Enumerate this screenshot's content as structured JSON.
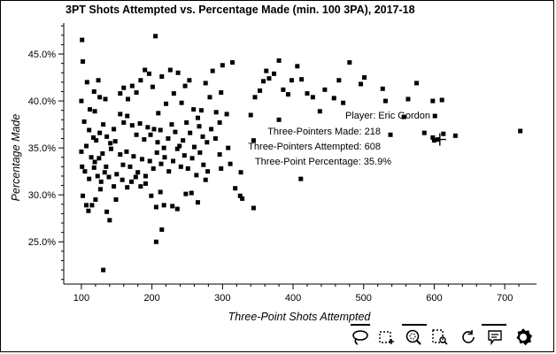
{
  "chart_data": {
    "type": "scatter",
    "title": "3PT Shots Attempted vs. Percentage Made (min. 100 3PA), 2017-18",
    "xlabel": "Three-Point Shots Attempted",
    "ylabel": "Percentage Made",
    "xlim": [
      75,
      745
    ],
    "ylim": [
      20.5,
      48.3
    ],
    "xticks": [
      100,
      200,
      300,
      400,
      500,
      600,
      700
    ],
    "yticks": [
      25,
      30,
      35,
      40,
      45
    ],
    "ytick_suffix": ".0%",
    "grid": false,
    "points": [
      [
        101,
        46.5
      ],
      [
        102,
        44.2
      ],
      [
        108,
        42.0
      ],
      [
        118,
        41.0
      ],
      [
        124,
        42.2
      ],
      [
        126,
        40.4
      ],
      [
        100,
        40.0
      ],
      [
        134,
        40.2
      ],
      [
        112,
        39.1
      ],
      [
        119,
        38.9
      ],
      [
        104,
        37.8
      ],
      [
        111,
        36.9
      ],
      [
        117,
        36.1
      ],
      [
        121,
        35.8
      ],
      [
        126,
        36.6
      ],
      [
        131,
        37.5
      ],
      [
        136,
        36.2
      ],
      [
        141,
        35.5
      ],
      [
        146,
        37.0
      ],
      [
        100,
        34.6
      ],
      [
        107,
        35.2
      ],
      [
        114,
        34.0
      ],
      [
        119,
        33.5
      ],
      [
        125,
        33.9
      ],
      [
        130,
        34.4
      ],
      [
        135,
        33.0
      ],
      [
        142,
        34.9
      ],
      [
        148,
        35.7
      ],
      [
        101,
        33.0
      ],
      [
        105,
        32.5
      ],
      [
        111,
        31.7
      ],
      [
        118,
        32.9
      ],
      [
        123,
        32.0
      ],
      [
        128,
        31.4
      ],
      [
        133,
        32.4
      ],
      [
        139,
        31.9
      ],
      [
        146,
        30.9
      ],
      [
        150,
        32.2
      ],
      [
        102,
        29.9
      ],
      [
        107,
        28.9
      ],
      [
        110,
        28.3
      ],
      [
        115,
        28.9
      ],
      [
        120,
        29.5
      ],
      [
        127,
        30.6
      ],
      [
        136,
        28.2
      ],
      [
        140,
        27.3
      ],
      [
        149,
        29.5
      ],
      [
        131,
        22.0
      ],
      [
        155,
        40.8
      ],
      [
        160,
        41.4
      ],
      [
        166,
        40.2
      ],
      [
        172,
        41.6
      ],
      [
        178,
        40.9
      ],
      [
        184,
        42.2
      ],
      [
        190,
        43.3
      ],
      [
        196,
        42.9
      ],
      [
        201,
        41.5
      ],
      [
        205,
        46.9
      ],
      [
        209,
        38.7
      ],
      [
        214,
        42.6
      ],
      [
        220,
        39.7
      ],
      [
        226,
        43.3
      ],
      [
        231,
        40.8
      ],
      [
        237,
        43.0
      ],
      [
        242,
        39.8
      ],
      [
        247,
        41.6
      ],
      [
        253,
        42.2
      ],
      [
        259,
        39.1
      ],
      [
        265,
        38.2
      ],
      [
        270,
        39.0
      ],
      [
        276,
        41.9
      ],
      [
        282,
        40.4
      ],
      [
        286,
        43.2
      ],
      [
        291,
        38.8
      ],
      [
        155,
        38.6
      ],
      [
        160,
        37.7
      ],
      [
        165,
        38.4
      ],
      [
        172,
        37.4
      ],
      [
        178,
        36.4
      ],
      [
        183,
        37.6
      ],
      [
        189,
        35.9
      ],
      [
        194,
        37.2
      ],
      [
        198,
        36.4
      ],
      [
        203,
        37.0
      ],
      [
        208,
        35.6
      ],
      [
        212,
        36.9
      ],
      [
        217,
        35.0
      ],
      [
        223,
        36.0
      ],
      [
        228,
        37.5
      ],
      [
        233,
        36.7
      ],
      [
        239,
        35.2
      ],
      [
        244,
        35.8
      ],
      [
        249,
        37.7
      ],
      [
        254,
        36.6
      ],
      [
        260,
        35.1
      ],
      [
        267,
        37.3
      ],
      [
        272,
        36.2
      ],
      [
        278,
        35.6
      ],
      [
        284,
        37.0
      ],
      [
        290,
        36.0
      ],
      [
        155,
        34.3
      ],
      [
        159,
        33.2
      ],
      [
        164,
        34.6
      ],
      [
        169,
        33.0
      ],
      [
        174,
        34.1
      ],
      [
        180,
        32.4
      ],
      [
        186,
        33.8
      ],
      [
        191,
        32.0
      ],
      [
        197,
        33.6
      ],
      [
        202,
        32.8
      ],
      [
        207,
        34.5
      ],
      [
        213,
        33.3
      ],
      [
        218,
        34.0
      ],
      [
        224,
        32.5
      ],
      [
        230,
        33.6
      ],
      [
        236,
        34.9
      ],
      [
        241,
        33.0
      ],
      [
        246,
        34.2
      ],
      [
        251,
        32.8
      ],
      [
        257,
        33.9
      ],
      [
        263,
        32.1
      ],
      [
        268,
        34.5
      ],
      [
        273,
        33.2
      ],
      [
        279,
        32.5
      ],
      [
        158,
        31.6
      ],
      [
        165,
        30.8
      ],
      [
        171,
        31.4
      ],
      [
        177,
        31.9
      ],
      [
        184,
        30.9
      ],
      [
        191,
        31.2
      ],
      [
        199,
        29.9
      ],
      [
        206,
        28.7
      ],
      [
        212,
        30.3
      ],
      [
        217,
        28.9
      ],
      [
        229,
        28.8
      ],
      [
        236,
        28.5
      ],
      [
        248,
        30.1
      ],
      [
        256,
        30.2
      ],
      [
        265,
        29.2
      ],
      [
        276,
        31.6
      ],
      [
        214,
        26.3
      ],
      [
        206,
        25.0
      ],
      [
        300,
        43.8
      ],
      [
        314,
        44.1
      ],
      [
        298,
        40.9
      ],
      [
        306,
        38.6
      ],
      [
        296,
        37.7
      ],
      [
        308,
        35.0
      ],
      [
        296,
        34.3
      ],
      [
        311,
        33.3
      ],
      [
        298,
        32.8
      ],
      [
        326,
        32.4
      ],
      [
        318,
        30.7
      ],
      [
        328,
        29.6
      ],
      [
        340,
        38.5
      ],
      [
        344,
        35.8
      ],
      [
        346,
        40.4
      ],
      [
        353,
        41.1
      ],
      [
        358,
        42.1
      ],
      [
        362,
        43.2
      ],
      [
        366,
        42.4
      ],
      [
        373,
        42.9
      ],
      [
        380,
        44.3
      ],
      [
        386,
        41.2
      ],
      [
        393,
        40.7
      ],
      [
        398,
        42.2
      ],
      [
        406,
        43.7
      ],
      [
        412,
        42.3
      ],
      [
        420,
        40.8
      ],
      [
        428,
        40.4
      ],
      [
        438,
        38.9
      ],
      [
        445,
        41.2
      ],
      [
        458,
        40.3
      ],
      [
        465,
        42.2
      ],
      [
        471,
        39.8
      ],
      [
        480,
        44.1
      ],
      [
        496,
        41.8
      ],
      [
        501,
        42.5
      ],
      [
        527,
        41.3
      ],
      [
        531,
        40.0
      ],
      [
        538,
        36.4
      ],
      [
        557,
        38.3
      ],
      [
        563,
        40.2
      ],
      [
        575,
        41.9
      ],
      [
        586,
        36.6
      ],
      [
        598,
        40.0
      ],
      [
        601,
        38.4
      ],
      [
        611,
        40.1
      ],
      [
        613,
        36.5
      ],
      [
        598,
        36.1
      ],
      [
        600,
        35.8
      ],
      [
        605,
        35.9
      ],
      [
        630,
        36.3
      ],
      [
        722,
        36.8
      ],
      [
        380,
        38.0
      ],
      [
        411,
        31.7
      ],
      [
        344,
        28.6
      ],
      [
        325,
        29.9
      ]
    ],
    "tooltip": {
      "player": "Player: Eric Gordon",
      "made": "Three-Pointers Made: 218",
      "attempted": "Three-Pointers Attempted: 608",
      "percentage": "Three-Point Percentage: 35.9%"
    },
    "hover_point": [
      608,
      35.9
    ]
  },
  "toolbar": {
    "tools": [
      {
        "name": "lasso-select-tool-icon",
        "active": true
      },
      {
        "name": "box-select-tool-icon",
        "active": false
      },
      {
        "name": "wheel-zoom-tool-icon",
        "active": true
      },
      {
        "name": "box-zoom-tool-icon",
        "active": false
      },
      {
        "name": "reset-tool-icon",
        "active": false
      },
      {
        "name": "hover-tool-icon",
        "active": true
      },
      {
        "name": "bokeh-logo-icon",
        "active": false
      }
    ]
  }
}
